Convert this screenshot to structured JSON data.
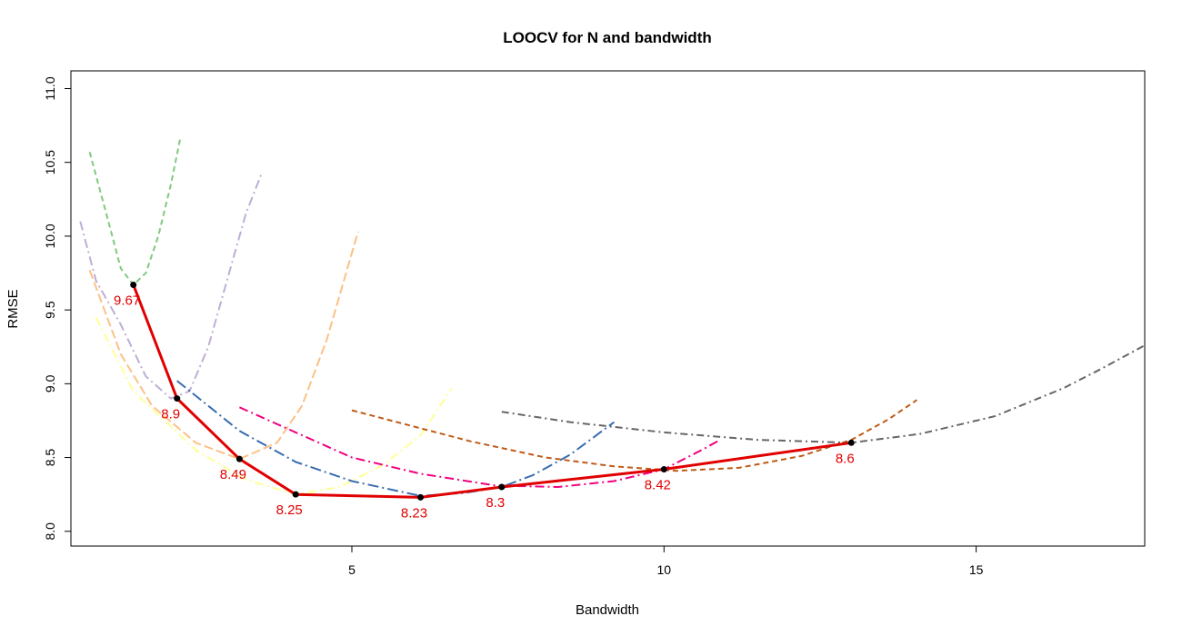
{
  "chart_data": {
    "type": "line",
    "title": "LOOCV for N and bandwidth",
    "xlabel": "Bandwidth",
    "ylabel": "RMSE",
    "xlim": [
      0.5,
      17.7
    ],
    "ylim": [
      7.9,
      11.12
    ],
    "x_ticks": [
      5,
      10,
      15
    ],
    "y_ticks": [
      8.0,
      8.5,
      9.0,
      9.5,
      10.0,
      10.5,
      11.0
    ],
    "y_tick_labels": [
      "8.0",
      "8.5",
      "9.0",
      "9.5",
      "10.0",
      "10.5",
      "11.0"
    ],
    "grid": false,
    "series": [
      {
        "color": "#7fc97f",
        "dash": "6,4",
        "x": [
          0.8,
          1.1,
          1.3,
          1.5,
          1.7,
          1.9,
          2.1,
          2.25
        ],
        "y": [
          10.57,
          10.1,
          9.78,
          9.67,
          9.75,
          10.0,
          10.35,
          10.66
        ]
      },
      {
        "color": "#beaed4",
        "dash": "10,4,2,4",
        "x": [
          0.65,
          0.9,
          1.3,
          1.7,
          2.1,
          2.4,
          2.7,
          3.0,
          3.3,
          3.55
        ],
        "y": [
          10.1,
          9.7,
          9.4,
          9.05,
          8.9,
          8.95,
          9.25,
          9.7,
          10.15,
          10.42
        ]
      },
      {
        "color": "#fdc086",
        "dash": "10,4",
        "x": [
          0.8,
          1.3,
          1.8,
          2.5,
          3.2,
          3.8,
          4.2,
          4.6,
          5.1
        ],
        "y": [
          9.77,
          9.2,
          8.85,
          8.6,
          8.49,
          8.6,
          8.85,
          9.3,
          10.03
        ]
      },
      {
        "color": "#ffff99",
        "dash": "10,4,2,4",
        "x": [
          0.9,
          1.5,
          2.5,
          3.3,
          4.1,
          4.8,
          5.5,
          6.1,
          6.6
        ],
        "y": [
          9.45,
          8.95,
          8.55,
          8.35,
          8.25,
          8.3,
          8.45,
          8.65,
          8.97
        ]
      },
      {
        "color": "#386cb0",
        "dash": "12,4,2,4",
        "x": [
          2.2,
          2.7,
          3.2,
          4.1,
          5.0,
          6.1,
          6.8,
          7.4,
          7.9,
          8.5,
          9.2
        ],
        "y": [
          9.02,
          8.85,
          8.68,
          8.47,
          8.34,
          8.24,
          8.26,
          8.3,
          8.38,
          8.52,
          8.74
        ]
      },
      {
        "color": "#f0027f",
        "dash": "10,4,2,4",
        "x": [
          3.2,
          4.1,
          5.0,
          6.1,
          7.3,
          8.3,
          9.2,
          10.0,
          10.6,
          10.9
        ],
        "y": [
          8.84,
          8.67,
          8.5,
          8.39,
          8.31,
          8.3,
          8.34,
          8.42,
          8.55,
          8.62
        ]
      },
      {
        "color": "#bf5b17",
        "dash": "6,4",
        "x": [
          5.0,
          5.9,
          6.9,
          8.1,
          9.2,
          10.2,
          11.2,
          12.2,
          13.0,
          13.6,
          14.05
        ],
        "y": [
          8.82,
          8.72,
          8.61,
          8.5,
          8.44,
          8.41,
          8.43,
          8.51,
          8.62,
          8.76,
          8.89
        ]
      },
      {
        "color": "#666666",
        "dash": "8,4,2,4",
        "x": [
          7.4,
          8.5,
          10.0,
          11.5,
          13.0,
          14.1,
          15.3,
          16.4,
          17.0,
          17.7
        ],
        "y": [
          8.81,
          8.74,
          8.67,
          8.62,
          8.6,
          8.66,
          8.78,
          8.97,
          9.1,
          9.26
        ]
      }
    ],
    "optimum": {
      "color": "#e00000",
      "x": [
        1.5,
        2.2,
        3.2,
        4.1,
        6.1,
        7.4,
        10.0,
        13.0
      ],
      "y": [
        9.67,
        8.9,
        8.49,
        8.25,
        8.23,
        8.3,
        8.42,
        8.6
      ],
      "labels": [
        "9.67",
        "8.9",
        "8.49",
        "8.25",
        "8.23",
        "8.3",
        "8.42",
        "8.6"
      ]
    }
  }
}
